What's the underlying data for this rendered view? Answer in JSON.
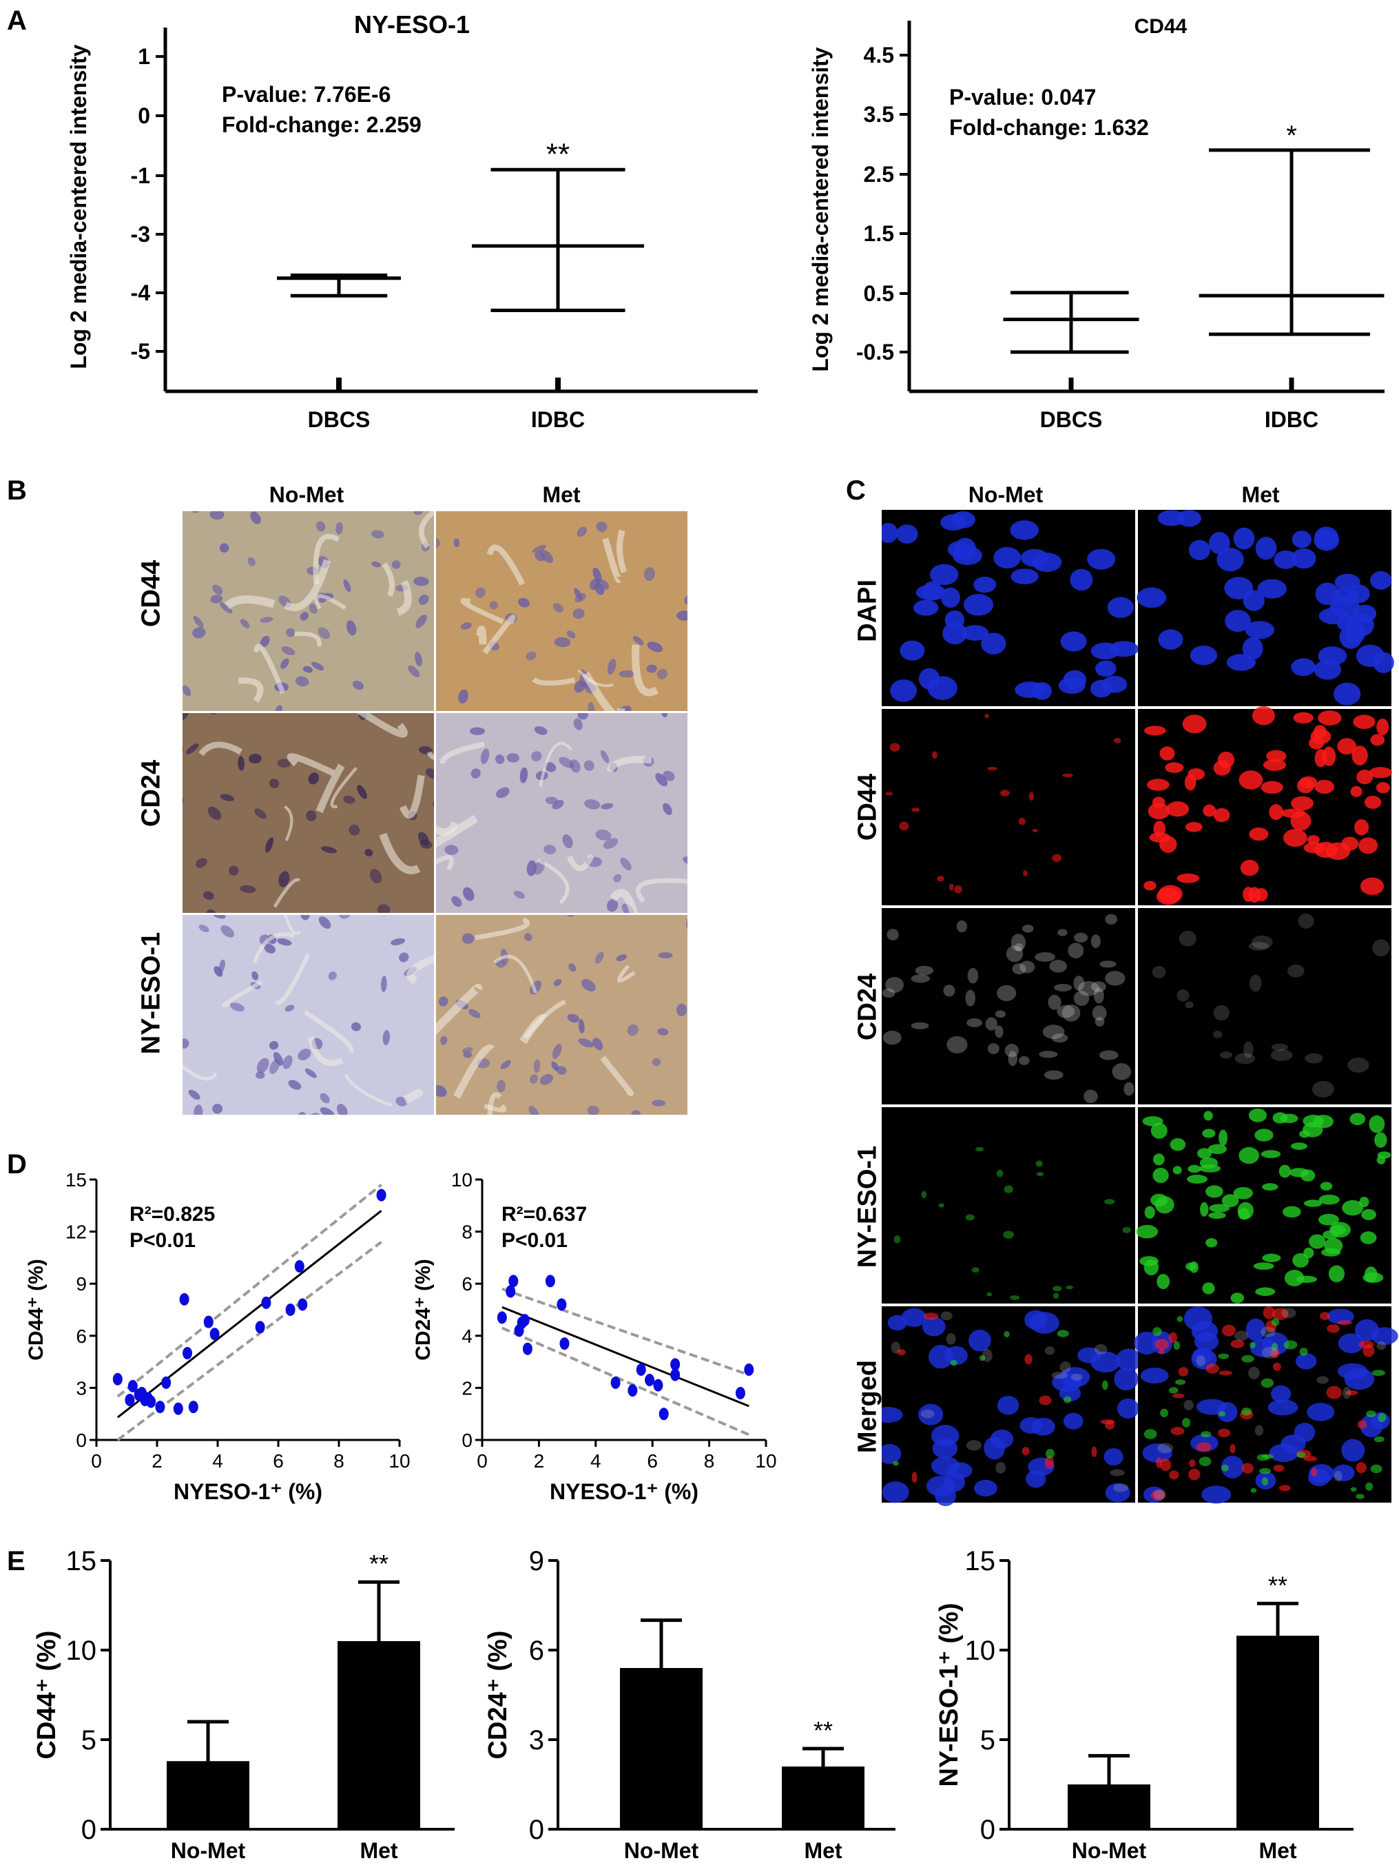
{
  "figure": {
    "panel_labels": {
      "a": "A",
      "b": "B",
      "c": "C",
      "d": "D",
      "e": "E"
    }
  },
  "panel_b": {
    "columns": [
      "No-Met",
      "Met"
    ],
    "rows": [
      "CD44",
      "CD24",
      "NY-ESO-1"
    ],
    "colors": {
      "cd44_nomet": "#b7a98e",
      "cd44_met": "#c39a66",
      "cd24_nomet": "#8a6d55",
      "cd24_met": "#c2bac9",
      "nyeso_nomet": "#c9c9e0",
      "nyeso_met": "#c0a482"
    }
  },
  "panel_c": {
    "columns": [
      "No-Met",
      "Met"
    ],
    "rows": [
      "DAPI",
      "CD44",
      "CD24",
      "NY-ESO-1",
      "Merged"
    ],
    "colors": {
      "dapi": "#1b2fd6",
      "cd44": "#ff1a1a",
      "cd24": "#bdbdbd",
      "nyeso": "#22cc22"
    }
  },
  "chart_data": [
    {
      "id": "A-left",
      "type": "box",
      "title": "NY-ESO-1",
      "ylabel": "Log 2 media-centered intensity",
      "categories": [
        "DBCS",
        "IDBC"
      ],
      "yticks": [
        "1",
        "0",
        "-1",
        "-3",
        "-4",
        "-5"
      ],
      "boxes": [
        {
          "min": -4.05,
          "mid": -3.75,
          "max": -3.7
        },
        {
          "min": -4.3,
          "mid": -3.2,
          "max": -0.9
        }
      ],
      "annotations": [
        "P-value: 7.76E-6",
        "Fold-change: 2.259"
      ],
      "significance": [
        "",
        "**"
      ]
    },
    {
      "id": "A-right",
      "type": "box",
      "title": "CD44",
      "ylabel": "Log 2 media-centered intensity",
      "categories": [
        "DBCS",
        "IDBC"
      ],
      "yticks": [
        "4.5",
        "3.5",
        "2.5",
        "1.5",
        "0.5",
        "-0.5"
      ],
      "ylim": [
        -1.3,
        5.1
      ],
      "boxes": [
        {
          "min": -0.5,
          "mid": 0.05,
          "max": 0.5
        },
        {
          "min": -0.2,
          "mid": 0.45,
          "max": 2.9
        }
      ],
      "annotations": [
        "P-value: 0.047",
        "Fold-change: 1.632"
      ],
      "significance": [
        "",
        "*"
      ]
    },
    {
      "id": "D-left",
      "type": "scatter",
      "xlabel": "NYESO-1⁺ (%)",
      "ylabel": "CD44⁺ (%)",
      "xlim": [
        0,
        10
      ],
      "ylim": [
        0,
        15
      ],
      "xticks": [
        "0",
        "2",
        "4",
        "6",
        "8",
        "10"
      ],
      "yticks": [
        "0",
        "3",
        "6",
        "9",
        "12",
        "15"
      ],
      "annotations": [
        "R²=0.825",
        "P<0.01"
      ],
      "x": [
        0.7,
        1.1,
        1.2,
        1.4,
        1.5,
        1.6,
        1.7,
        1.8,
        2.1,
        2.3,
        2.7,
        2.9,
        3.0,
        3.2,
        3.7,
        3.9,
        5.4,
        5.6,
        6.4,
        6.7,
        6.8,
        9.4
      ],
      "y": [
        3.5,
        2.3,
        3.1,
        2.6,
        2.7,
        2.3,
        2.4,
        2.2,
        1.9,
        3.3,
        1.8,
        8.1,
        5.0,
        1.9,
        6.8,
        6.1,
        6.5,
        7.9,
        7.5,
        10.0,
        7.8,
        14.1
      ],
      "fit": {
        "x": [
          0.7,
          9.4
        ],
        "y": [
          1.3,
          13.2
        ]
      },
      "ci_upper": {
        "x": [
          0.7,
          9.4
        ],
        "y": [
          2.5,
          14.7
        ]
      },
      "ci_lower": {
        "x": [
          0.7,
          9.4
        ],
        "y": [
          0.0,
          11.4
        ]
      },
      "colors": {
        "point": "#0b0bdd",
        "ci": "#9a9a9a"
      }
    },
    {
      "id": "D-right",
      "type": "scatter",
      "xlabel": "NYESO-1⁺ (%)",
      "ylabel": "CD24⁺ (%)",
      "xlim": [
        0,
        10
      ],
      "ylim": [
        0,
        10
      ],
      "xticks": [
        "0",
        "2",
        "4",
        "6",
        "8",
        "10"
      ],
      "yticks": [
        "0",
        "2",
        "4",
        "6",
        "8",
        "10"
      ],
      "annotations": [
        "R²=0.637",
        "P<0.01"
      ],
      "x": [
        0.7,
        1.0,
        1.1,
        1.3,
        1.4,
        1.5,
        1.6,
        2.4,
        2.8,
        2.9,
        4.7,
        5.3,
        5.6,
        5.9,
        6.2,
        6.4,
        6.8,
        6.8,
        9.1,
        9.4
      ],
      "y": [
        4.7,
        5.7,
        6.1,
        4.2,
        4.5,
        4.6,
        3.5,
        6.1,
        5.2,
        3.7,
        2.2,
        1.9,
        2.7,
        2.3,
        2.1,
        1.0,
        2.5,
        2.9,
        1.8,
        2.7
      ],
      "fit": {
        "x": [
          0.7,
          9.4
        ],
        "y": [
          5.1,
          1.3
        ]
      },
      "ci_upper": {
        "x": [
          0.7,
          9.4
        ],
        "y": [
          5.8,
          2.5
        ]
      },
      "ci_lower": {
        "x": [
          0.7,
          9.4
        ],
        "y": [
          4.3,
          0.2
        ]
      },
      "colors": {
        "point": "#0b0bdd",
        "ci": "#9a9a9a"
      }
    },
    {
      "id": "E-1",
      "type": "bar",
      "categories": [
        "No-Met",
        "Met"
      ],
      "values": [
        3.8,
        10.5
      ],
      "errors": [
        2.2,
        3.3
      ],
      "ylabel": "CD44⁺ (%)",
      "ylim": [
        0,
        15
      ],
      "yticks": [
        "0",
        "5",
        "10",
        "15"
      ],
      "significance": [
        "",
        "**"
      ]
    },
    {
      "id": "E-2",
      "type": "bar",
      "categories": [
        "No-Met",
        "Met"
      ],
      "values": [
        5.4,
        2.1
      ],
      "errors": [
        1.6,
        0.6
      ],
      "ylabel": "CD24⁺ (%)",
      "ylim": [
        0,
        9
      ],
      "yticks": [
        "0",
        "3",
        "6",
        "9"
      ],
      "significance": [
        "",
        "**"
      ]
    },
    {
      "id": "E-3",
      "type": "bar",
      "categories": [
        "No-Met",
        "Met"
      ],
      "values": [
        2.5,
        10.8
      ],
      "errors": [
        1.6,
        1.8
      ],
      "ylabel": "NY-ESO-1⁺ (%)",
      "ylim": [
        0,
        15
      ],
      "yticks": [
        "0",
        "5",
        "10",
        "15"
      ],
      "significance": [
        "",
        "**"
      ]
    }
  ]
}
